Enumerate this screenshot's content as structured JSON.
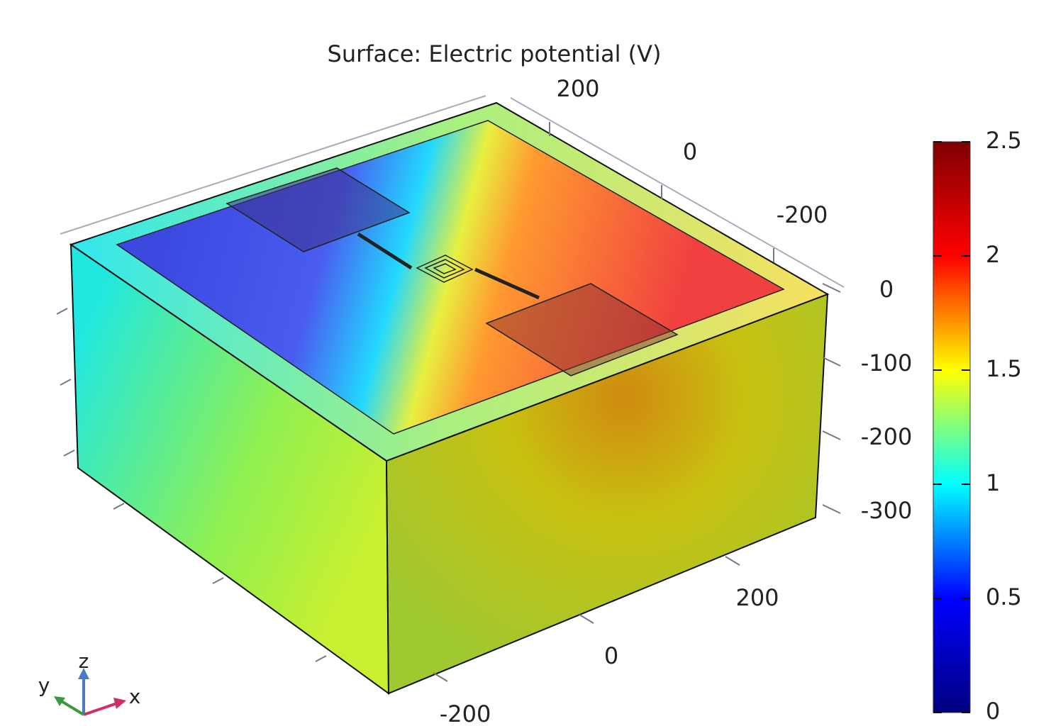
{
  "chart_data": {
    "type": "surface",
    "title": "Surface: Electric potential (V)",
    "colormap": [
      "#00007f",
      "#0000ff",
      "#00ffff",
      "#ffff00",
      "#ff0000",
      "#7f0000"
    ],
    "clim": [
      0,
      2.5
    ],
    "cticks": [
      0,
      0.5,
      1,
      1.5,
      2,
      2.5
    ],
    "xticks": [
      200,
      0,
      -200
    ],
    "yticks": [
      200,
      0,
      -200
    ],
    "zticks": [
      0,
      -100,
      -200,
      -300
    ],
    "x_label": "x",
    "y_label": "y",
    "z_label": "z"
  }
}
